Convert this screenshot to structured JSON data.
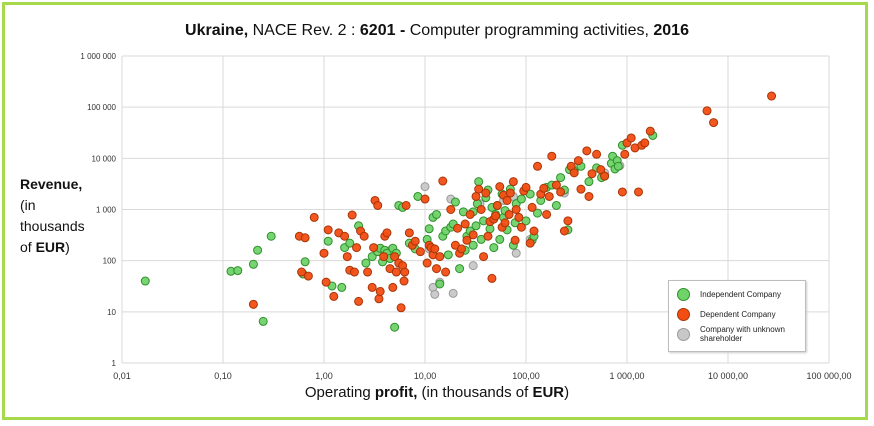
{
  "chart_data": {
    "type": "scatter",
    "title": {
      "country": "Ukraine,",
      "nace": " NACE Rev. 2 : ",
      "code": "6201 -",
      "activity": " Computer programming activities,  ",
      "year": "2016"
    },
    "xlabel": {
      "pre": "Operating ",
      "bold1": "profit,",
      "mid": " (in thousands of ",
      "bold2": "EUR",
      "post": ")"
    },
    "ylabel": {
      "bold": "Revenue,",
      "l2": "(in",
      "l3": "thousands",
      "l4pre": "of ",
      "l4bold": "EUR",
      "l4post": ")"
    },
    "xscale": "log",
    "yscale": "log",
    "xlim": [
      0.01,
      100000
    ],
    "ylim": [
      1,
      1000000
    ],
    "xticks": [
      0.01,
      0.1,
      1,
      10,
      100,
      1000,
      10000,
      100000
    ],
    "xtick_labels": [
      "0,01",
      "0,10",
      "1,00",
      "10,00",
      "100,00",
      "1 000,00",
      "10 000,00",
      "100 000,00"
    ],
    "yticks": [
      1,
      10,
      100,
      1000,
      10000,
      100000,
      1000000
    ],
    "ytick_labels": [
      "1",
      "10",
      "100",
      "1 000",
      "10 000",
      "100 000",
      "1 000 000"
    ],
    "grid": true,
    "legend_position": "bottom-right",
    "series": [
      {
        "name": "Independent Company",
        "fill": "#6fd36a",
        "stroke": "#2f8f2a",
        "points": [
          [
            0.017,
            40
          ],
          [
            0.12,
            62
          ],
          [
            0.14,
            64
          ],
          [
            0.2,
            85
          ],
          [
            0.22,
            160
          ],
          [
            0.25,
            6.5
          ],
          [
            0.3,
            300
          ],
          [
            0.65,
            95
          ],
          [
            0.62,
            55
          ],
          [
            1.1,
            240
          ],
          [
            1.2,
            32
          ],
          [
            1.5,
            30
          ],
          [
            1.6,
            180
          ],
          [
            1.8,
            220
          ],
          [
            2.2,
            480
          ],
          [
            2.6,
            90
          ],
          [
            3.0,
            120
          ],
          [
            3.4,
            150
          ],
          [
            3.6,
            175
          ],
          [
            3.8,
            95
          ],
          [
            4.0,
            160
          ],
          [
            4.2,
            140
          ],
          [
            4.5,
            110
          ],
          [
            4.8,
            175
          ],
          [
            5.0,
            5
          ],
          [
            5.2,
            140
          ],
          [
            5.5,
            1200
          ],
          [
            6.0,
            1100
          ],
          [
            7.0,
            220
          ],
          [
            8.0,
            170
          ],
          [
            8.5,
            1800
          ],
          [
            10.5,
            260
          ],
          [
            11,
            420
          ],
          [
            12,
            700
          ],
          [
            13,
            800
          ],
          [
            14,
            35
          ],
          [
            15,
            300
          ],
          [
            16,
            380
          ],
          [
            17,
            130
          ],
          [
            18,
            450
          ],
          [
            19,
            520
          ],
          [
            20,
            1400
          ],
          [
            22,
            70
          ],
          [
            24,
            900
          ],
          [
            25,
            160
          ],
          [
            26,
            300
          ],
          [
            28,
            380
          ],
          [
            30,
            200
          ],
          [
            30,
            900
          ],
          [
            32,
            480
          ],
          [
            33,
            1300
          ],
          [
            34,
            3500
          ],
          [
            36,
            260
          ],
          [
            38,
            600
          ],
          [
            40,
            1700
          ],
          [
            42,
            2400
          ],
          [
            44,
            420
          ],
          [
            46,
            1100
          ],
          [
            48,
            180
          ],
          [
            50,
            800
          ],
          [
            52,
            1200
          ],
          [
            55,
            260
          ],
          [
            58,
            2000
          ],
          [
            60,
            700
          ],
          [
            62,
            950
          ],
          [
            65,
            400
          ],
          [
            70,
            2500
          ],
          [
            75,
            200
          ],
          [
            78,
            550
          ],
          [
            80,
            1300
          ],
          [
            90,
            1600
          ],
          [
            100,
            600
          ],
          [
            110,
            2000
          ],
          [
            115,
            250
          ],
          [
            120,
            300
          ],
          [
            130,
            850
          ],
          [
            140,
            1500
          ],
          [
            160,
            2700
          ],
          [
            180,
            3000
          ],
          [
            200,
            1200
          ],
          [
            220,
            4200
          ],
          [
            240,
            2400
          ],
          [
            260,
            400
          ],
          [
            270,
            6000
          ],
          [
            300,
            5600
          ],
          [
            350,
            7000
          ],
          [
            420,
            3500
          ],
          [
            500,
            6500
          ],
          [
            560,
            4200
          ],
          [
            600,
            4500
          ],
          [
            700,
            8000
          ],
          [
            720,
            11000
          ],
          [
            760,
            6200
          ],
          [
            800,
            9000
          ],
          [
            820,
            7000
          ],
          [
            900,
            18000
          ],
          [
            1800,
            28000
          ]
        ]
      },
      {
        "name": "Dependent Company",
        "fill": "#f24e13",
        "stroke": "#a83508",
        "points": [
          [
            0.2,
            14
          ],
          [
            0.57,
            300
          ],
          [
            0.6,
            60
          ],
          [
            0.65,
            280
          ],
          [
            0.7,
            50
          ],
          [
            0.8,
            700
          ],
          [
            1.0,
            140
          ],
          [
            1.05,
            38
          ],
          [
            1.1,
            400
          ],
          [
            1.25,
            20
          ],
          [
            1.4,
            350
          ],
          [
            1.6,
            300
          ],
          [
            1.7,
            120
          ],
          [
            1.8,
            65
          ],
          [
            1.9,
            780
          ],
          [
            2.0,
            60
          ],
          [
            2.1,
            180
          ],
          [
            2.2,
            16
          ],
          [
            2.3,
            380
          ],
          [
            2.5,
            300
          ],
          [
            2.7,
            60
          ],
          [
            3.0,
            30
          ],
          [
            3.1,
            180
          ],
          [
            3.2,
            1500
          ],
          [
            3.4,
            1200
          ],
          [
            3.5,
            18
          ],
          [
            3.6,
            25
          ],
          [
            3.9,
            120
          ],
          [
            4.0,
            300
          ],
          [
            4.2,
            350
          ],
          [
            4.5,
            70
          ],
          [
            4.8,
            30
          ],
          [
            5.0,
            120
          ],
          [
            5.2,
            60
          ],
          [
            5.5,
            90
          ],
          [
            5.8,
            12
          ],
          [
            6.0,
            80
          ],
          [
            6.2,
            40
          ],
          [
            6.3,
            60
          ],
          [
            6.5,
            1200
          ],
          [
            7.0,
            350
          ],
          [
            7.5,
            200
          ],
          [
            8.0,
            240
          ],
          [
            9.0,
            150
          ],
          [
            10.0,
            1600
          ],
          [
            10.5,
            90
          ],
          [
            11,
            200
          ],
          [
            11.5,
            180
          ],
          [
            12,
            130
          ],
          [
            12.5,
            170
          ],
          [
            13,
            70
          ],
          [
            14,
            120
          ],
          [
            15,
            3600
          ],
          [
            16,
            60
          ],
          [
            18,
            1000
          ],
          [
            20,
            200
          ],
          [
            21,
            430
          ],
          [
            22,
            140
          ],
          [
            23,
            170
          ],
          [
            25,
            520
          ],
          [
            26,
            250
          ],
          [
            28,
            800
          ],
          [
            30,
            320
          ],
          [
            32,
            1800
          ],
          [
            34,
            2500
          ],
          [
            36,
            1000
          ],
          [
            38,
            120
          ],
          [
            40,
            2100
          ],
          [
            42,
            300
          ],
          [
            44,
            580
          ],
          [
            46,
            45
          ],
          [
            48,
            650
          ],
          [
            50,
            750
          ],
          [
            52,
            1200
          ],
          [
            55,
            2800
          ],
          [
            58,
            450
          ],
          [
            60,
            1900
          ],
          [
            62,
            550
          ],
          [
            65,
            1500
          ],
          [
            68,
            800
          ],
          [
            70,
            2100
          ],
          [
            75,
            3500
          ],
          [
            78,
            250
          ],
          [
            80,
            1000
          ],
          [
            85,
            700
          ],
          [
            90,
            450
          ],
          [
            95,
            2300
          ],
          [
            100,
            2700
          ],
          [
            110,
            220
          ],
          [
            115,
            1100
          ],
          [
            120,
            380
          ],
          [
            130,
            7000
          ],
          [
            140,
            2000
          ],
          [
            150,
            2600
          ],
          [
            160,
            800
          ],
          [
            170,
            1800
          ],
          [
            180,
            11000
          ],
          [
            200,
            3000
          ],
          [
            220,
            2200
          ],
          [
            240,
            380
          ],
          [
            260,
            600
          ],
          [
            280,
            7000
          ],
          [
            300,
            5200
          ],
          [
            330,
            9000
          ],
          [
            350,
            2500
          ],
          [
            400,
            14000
          ],
          [
            420,
            1800
          ],
          [
            450,
            5000
          ],
          [
            500,
            12000
          ],
          [
            550,
            6000
          ],
          [
            600,
            4500
          ],
          [
            900,
            2200
          ],
          [
            950,
            12000
          ],
          [
            1000,
            20000
          ],
          [
            1100,
            25000
          ],
          [
            1200,
            16000
          ],
          [
            1300,
            2200
          ],
          [
            1400,
            18000
          ],
          [
            1500,
            20000
          ],
          [
            1700,
            34000
          ],
          [
            6200,
            85000
          ],
          [
            7200,
            50000
          ],
          [
            27000,
            165000
          ]
        ]
      },
      {
        "name": "Company with unknown shareholder",
        "fill": "#c8c8c8",
        "stroke": "#9a9a9a",
        "points": [
          [
            4.6,
            160
          ],
          [
            10,
            2800
          ],
          [
            11,
            170
          ],
          [
            12,
            30
          ],
          [
            12.5,
            22
          ],
          [
            14,
            38
          ],
          [
            18,
            1600
          ],
          [
            19,
            23
          ],
          [
            30,
            80
          ],
          [
            35,
            1300
          ],
          [
            60,
            1500
          ],
          [
            75,
            1800
          ],
          [
            80,
            140
          ],
          [
            110,
            260
          ],
          [
            240,
            2100
          ],
          [
            320,
            7000
          ],
          [
            600,
            5200
          ],
          [
            850,
            7200
          ]
        ]
      }
    ]
  }
}
